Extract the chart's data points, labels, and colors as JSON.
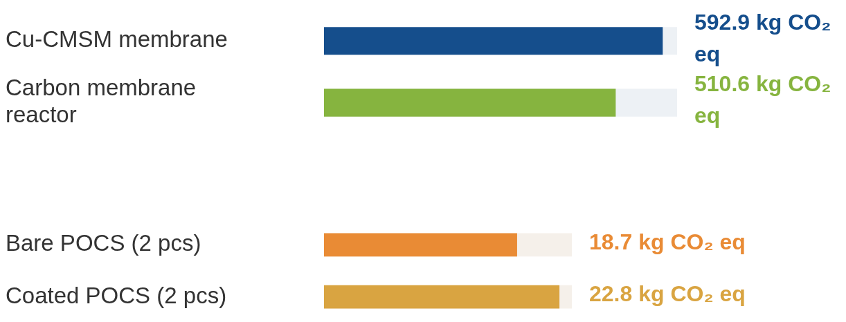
{
  "chart_data": [
    {
      "type": "bar",
      "orientation": "horizontal",
      "categories": [
        "Cu-CMSM membrane",
        "Carbon membrane reactor"
      ],
      "values": [
        592.9,
        510.6
      ],
      "colors": [
        "#154e8c",
        "#86b43f"
      ],
      "value_labels": [
        "592.9 kg CO₂ eq",
        "510.6 kg CO₂ eq"
      ],
      "xlim": [
        0,
        618
      ],
      "tick_labels": "y",
      "legend": false
    },
    {
      "type": "bar",
      "orientation": "horizontal",
      "categories": [
        "Bare POCS (2 pcs)",
        "Coated POCS (2 pcs)"
      ],
      "values": [
        18.7,
        22.8
      ],
      "colors": [
        "#e98b35",
        "#d9a441"
      ],
      "value_labels": [
        "18.7 kg CO₂ eq",
        "22.8 kg CO₂ eq"
      ],
      "xlim": [
        0,
        24
      ],
      "tick_labels": "y",
      "legend": false
    }
  ]
}
